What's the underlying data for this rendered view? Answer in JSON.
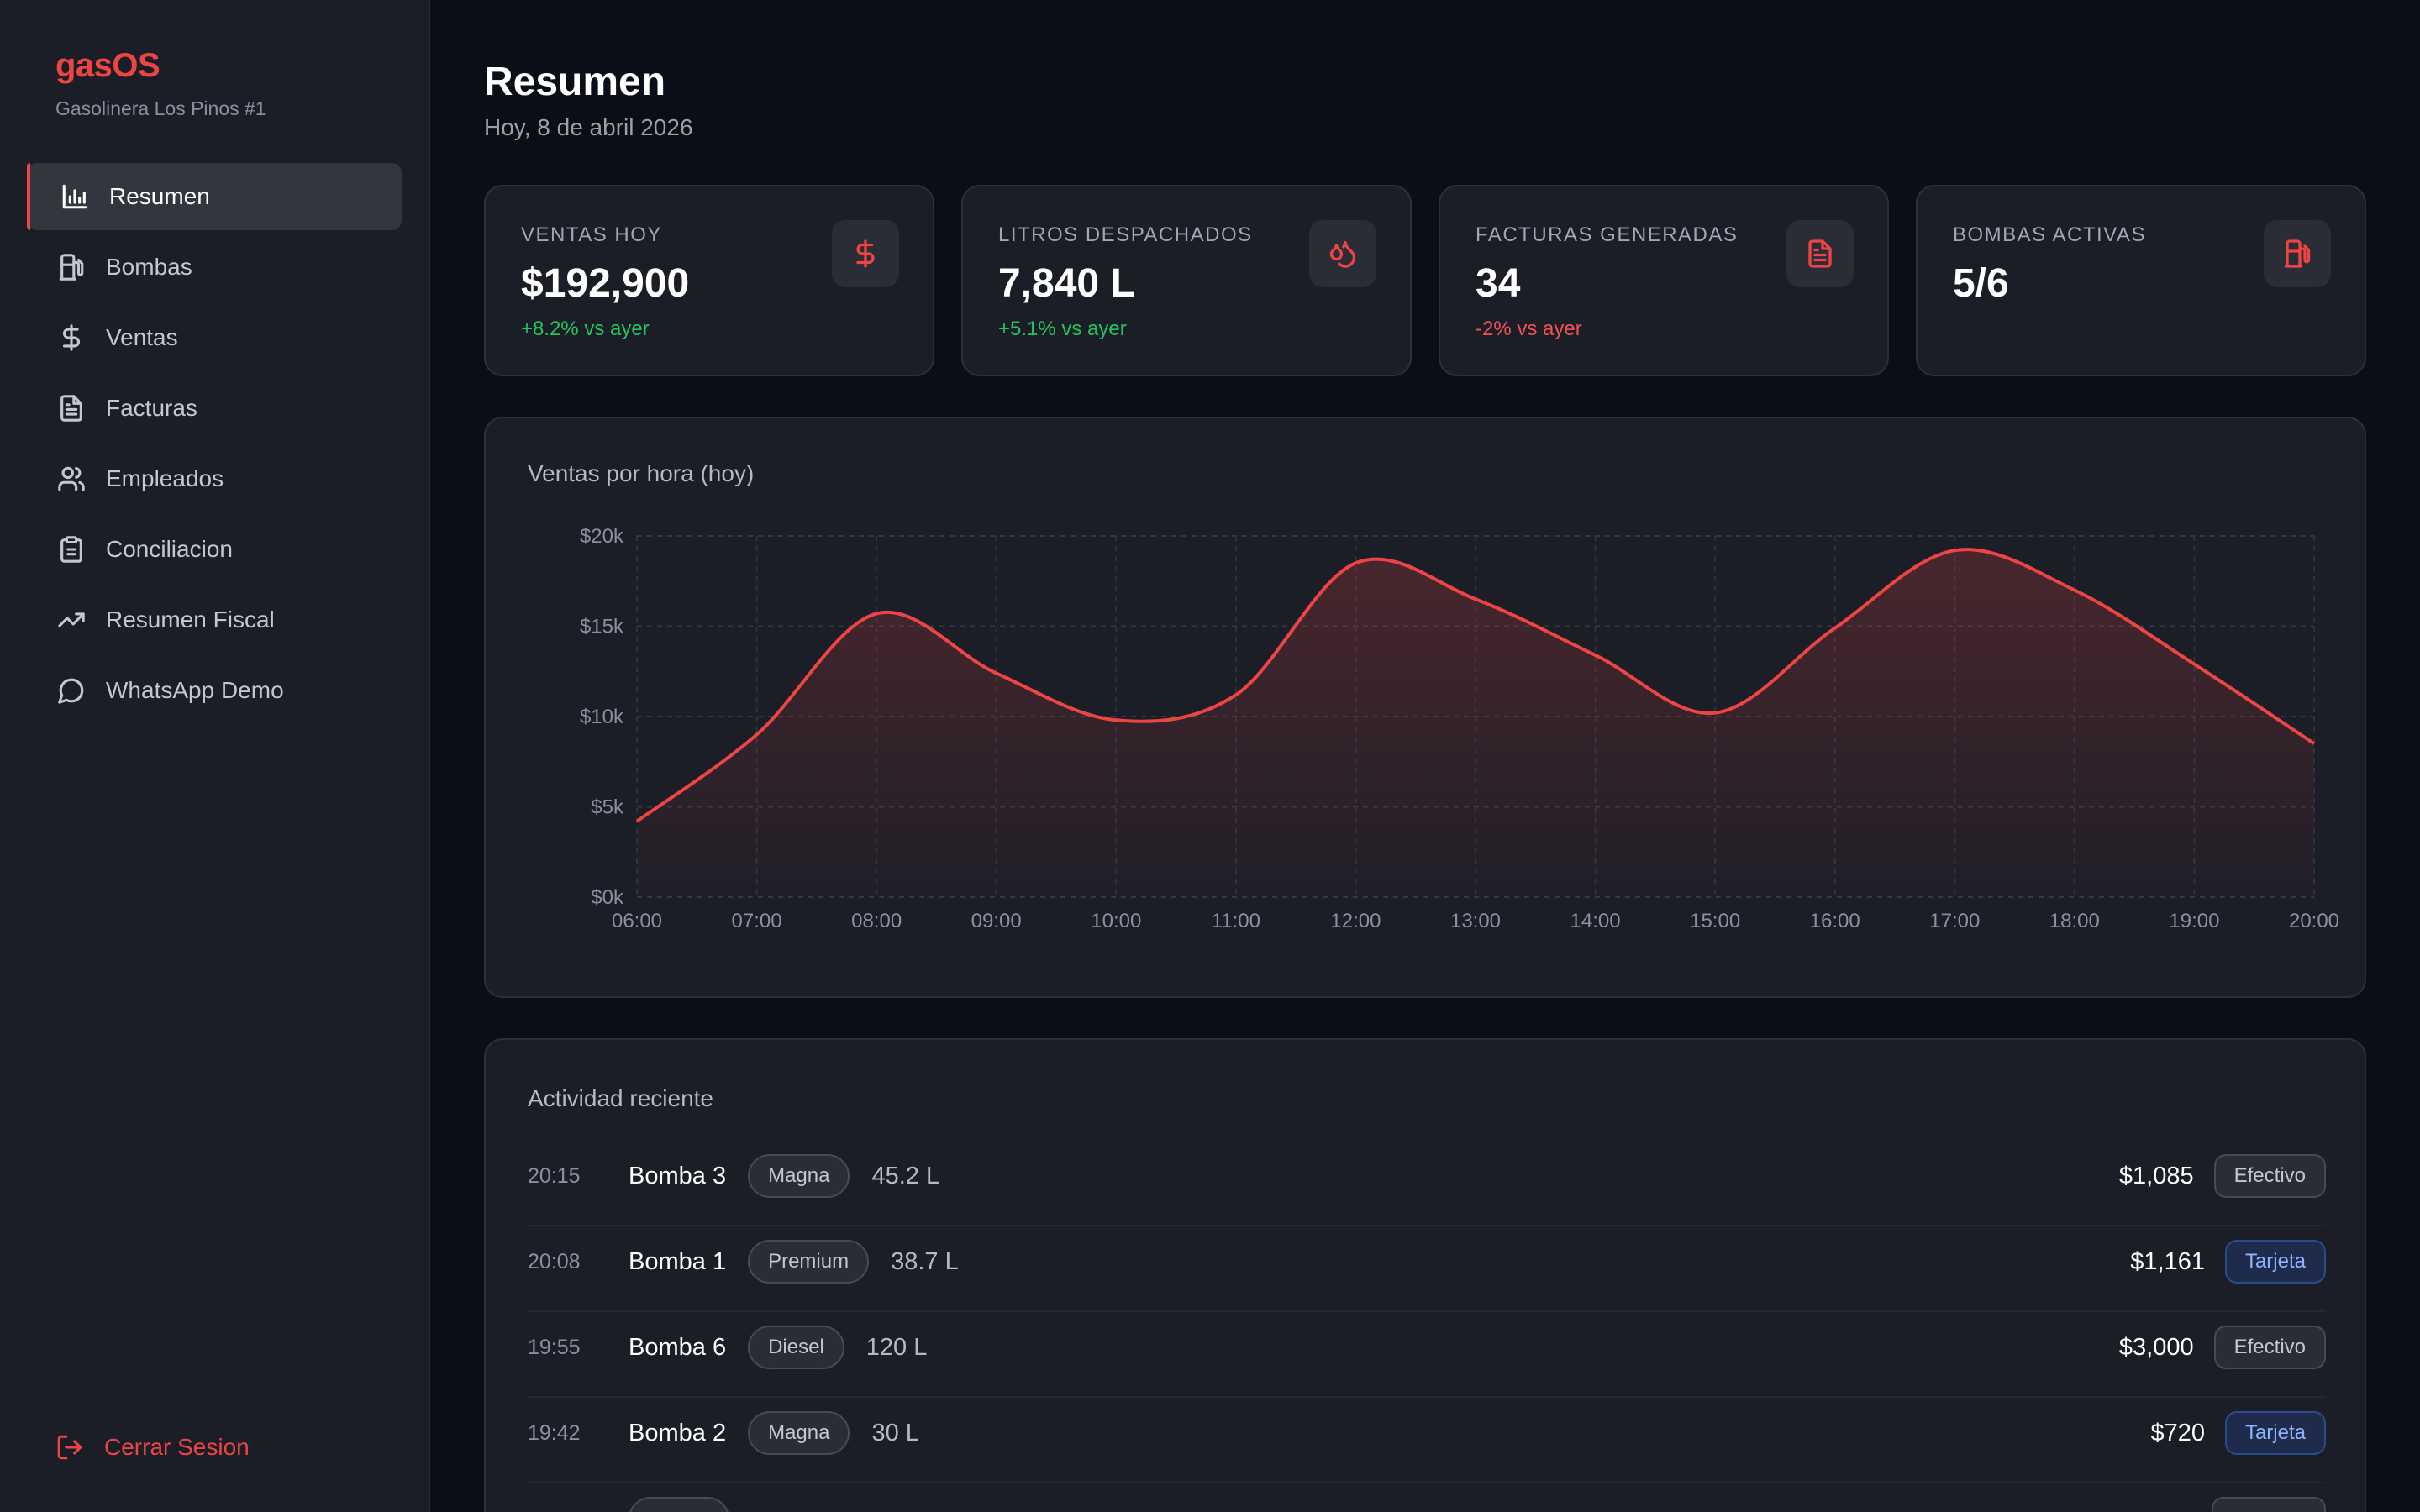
{
  "sidebar": {
    "brand": "gasOS",
    "station": "Gasolinera Los Pinos #1",
    "items": [
      {
        "label": "Resumen",
        "icon": "bar-chart-icon"
      },
      {
        "label": "Bombas",
        "icon": "fuel-pump-icon"
      },
      {
        "label": "Ventas",
        "icon": "dollar-icon"
      },
      {
        "label": "Facturas",
        "icon": "file-text-icon"
      },
      {
        "label": "Empleados",
        "icon": "users-icon"
      },
      {
        "label": "Conciliacion",
        "icon": "clipboard-icon"
      },
      {
        "label": "Resumen Fiscal",
        "icon": "trending-up-icon"
      },
      {
        "label": "WhatsApp Demo",
        "icon": "message-circle-icon"
      }
    ],
    "active_index": 0,
    "logout_label": "Cerrar Sesion"
  },
  "header": {
    "title": "Resumen",
    "date": "Hoy, 8 de abril 2026"
  },
  "stats": [
    {
      "label": "VENTAS HOY",
      "value": "$192,900",
      "delta": "+8.2% vs ayer",
      "trend": "up",
      "icon": "dollar-icon"
    },
    {
      "label": "LITROS DESPACHADOS",
      "value": "7,840 L",
      "delta": "+5.1% vs ayer",
      "trend": "up",
      "icon": "droplets-icon"
    },
    {
      "label": "FACTURAS GENERADAS",
      "value": "34",
      "delta": "-2% vs ayer",
      "trend": "down",
      "icon": "file-text-icon"
    },
    {
      "label": "BOMBAS ACTIVAS",
      "value": "5/6",
      "delta": "",
      "trend": "none",
      "icon": "fuel-pump-icon"
    }
  ],
  "chart": {
    "title": "Ventas por hora (hoy)"
  },
  "chart_data": {
    "type": "area",
    "x": [
      "06:00",
      "07:00",
      "08:00",
      "09:00",
      "10:00",
      "11:00",
      "12:00",
      "13:00",
      "14:00",
      "15:00",
      "16:00",
      "17:00",
      "18:00",
      "19:00",
      "20:00"
    ],
    "values": [
      4200,
      9000,
      15700,
      12400,
      9800,
      11200,
      18500,
      16500,
      13400,
      10200,
      14900,
      19200,
      17000,
      12900,
      8500
    ],
    "y_ticks": [
      "$0k",
      "$5k",
      "$10k",
      "$15k",
      "$20k"
    ],
    "ylim": [
      0,
      20000
    ],
    "grid": true,
    "color": "#ef4444"
  },
  "activity": {
    "title": "Actividad reciente",
    "rows": [
      {
        "time": "20:15",
        "pump": "Bomba 3",
        "fuel": "Magna",
        "liters": "45.2 L",
        "amount": "$1,085",
        "payment": "Efectivo",
        "payment_type": "cash"
      },
      {
        "time": "20:08",
        "pump": "Bomba 1",
        "fuel": "Premium",
        "liters": "38.7 L",
        "amount": "$1,161",
        "payment": "Tarjeta",
        "payment_type": "card"
      },
      {
        "time": "19:55",
        "pump": "Bomba 6",
        "fuel": "Diesel",
        "liters": "120 L",
        "amount": "$3,000",
        "payment": "Efectivo",
        "payment_type": "cash"
      },
      {
        "time": "19:42",
        "pump": "Bomba 2",
        "fuel": "Magna",
        "liters": "30 L",
        "amount": "$720",
        "payment": "Tarjeta",
        "payment_type": "card"
      }
    ]
  },
  "colors": {
    "accent": "#ef4444",
    "positive": "#22c55e",
    "negative": "#ef4444",
    "card_pill": "#8fb4ff"
  }
}
